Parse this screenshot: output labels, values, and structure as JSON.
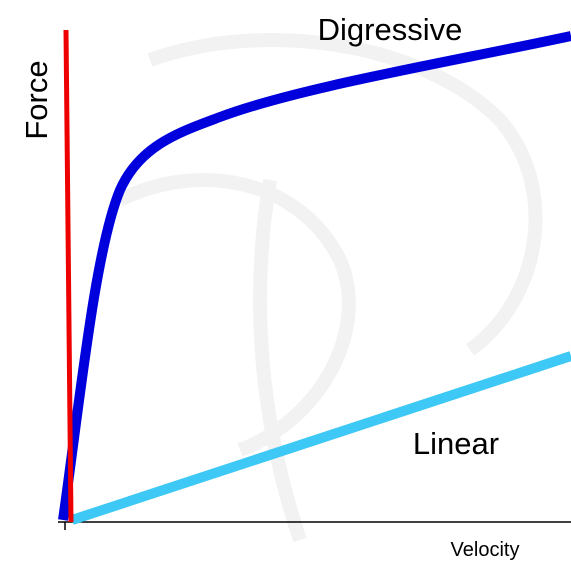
{
  "labels": {
    "y_axis": "Force",
    "x_axis": "Velocity",
    "curve_digressive": "Digressive",
    "curve_linear": "Linear"
  }
}
